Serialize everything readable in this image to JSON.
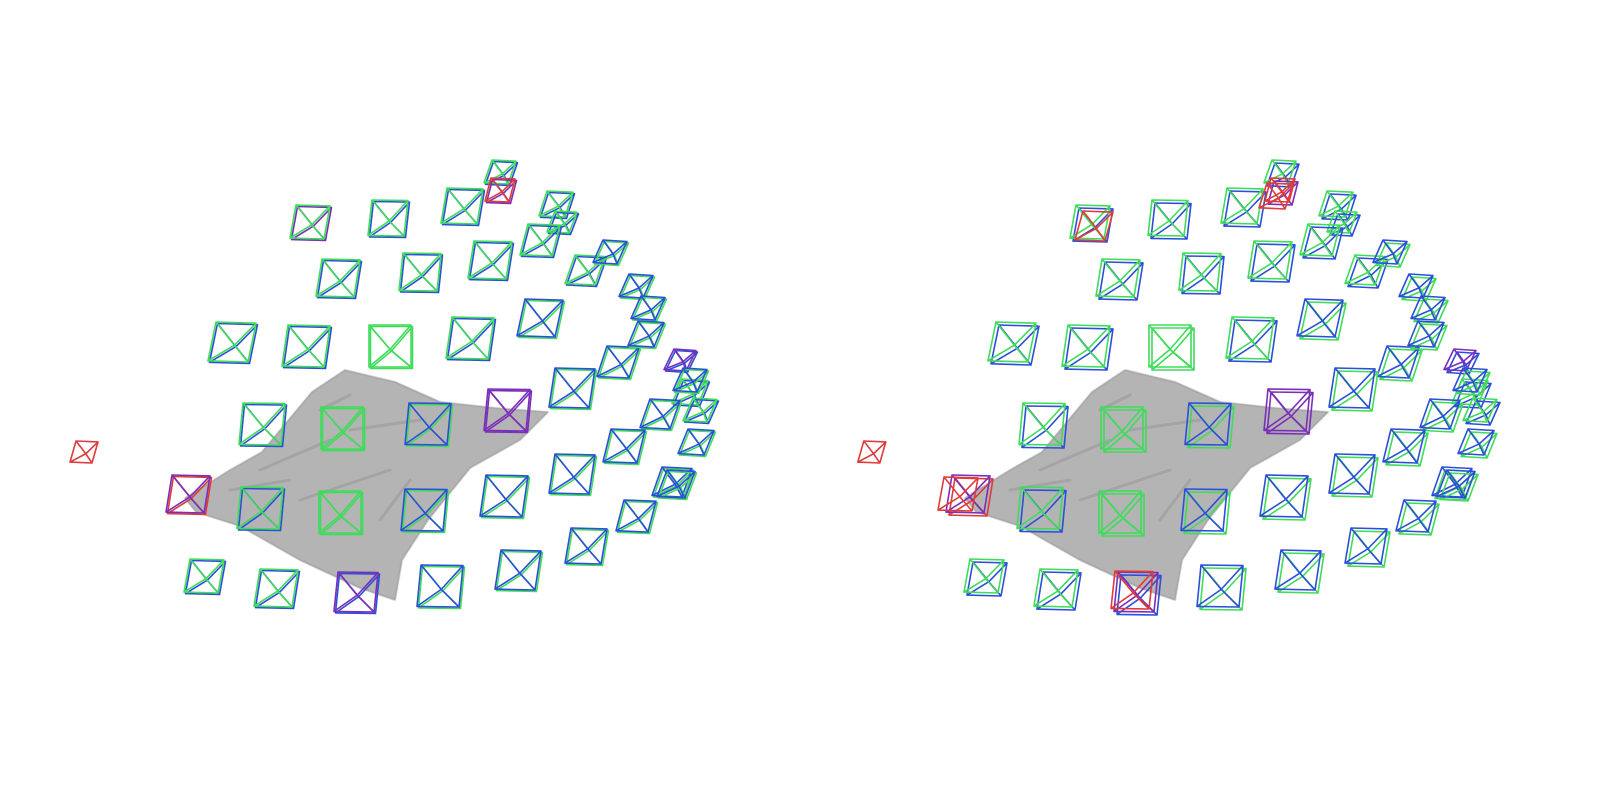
{
  "colors": {
    "background": "#ffffff",
    "mesh": "#b4b4b4",
    "mesh_shadow": "#8e8e8e",
    "green": "#3fdc5a",
    "blue": "#2c4fd8",
    "red": "#e03b3b",
    "purple": "#7b2fb8"
  },
  "panels": [
    {
      "name": "left",
      "camera_count": 58
    },
    {
      "name": "right",
      "camera_count": 58
    }
  ]
}
